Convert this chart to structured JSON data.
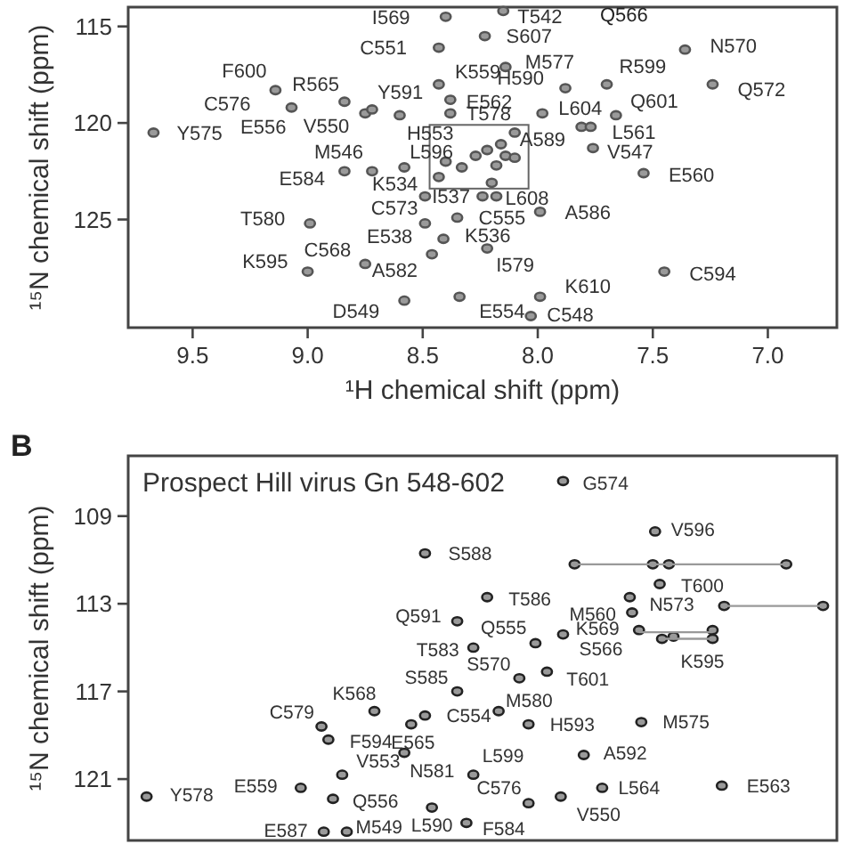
{
  "chart_data": [
    {
      "type": "scatter",
      "xlabel": "¹H chemical shift (ppm)",
      "ylabel": "¹⁵N chemical shift (ppm)",
      "xlim": [
        9.78,
        6.7
      ],
      "ylim": [
        130.6,
        114
      ],
      "xticks": [
        9.5,
        {
          "value": 9,
          "label": "9.0"
        },
        8.5,
        {
          "value": 8,
          "label": "8.0"
        },
        7.5,
        {
          "value": 7,
          "label": "7.0"
        }
      ],
      "yticks": [
        115,
        120,
        125
      ],
      "marker": "circle",
      "series": [
        {
          "color": "#555555",
          "x": [
            9.67,
            9.14,
            9.07,
            8.84,
            8.75,
            8.72,
            8.6,
            8.84,
            8.72,
            8.58,
            8.99,
            8.75,
            9.0,
            8.58,
            8.4,
            8.43,
            8.14,
            8.43,
            8.38,
            8.38,
            7.88,
            7.98,
            7.7,
            7.66,
            7.81,
            7.77,
            7.76,
            7.36,
            7.24,
            7.54,
            8.24,
            8.18,
            8.35,
            7.99,
            8.41,
            8.22,
            8.46,
            7.99,
            8.34,
            8.03,
            7.45,
            8.4,
            8.33,
            8.27,
            8.22,
            8.16,
            8.1,
            8.14,
            8.1,
            8.18,
            8.2,
            8.43,
            8.49,
            8.49,
            8.15,
            8.23
          ],
          "values": [
            120.5,
            118.3,
            119.2,
            118.9,
            119.5,
            119.3,
            119.6,
            122.5,
            122.5,
            122.3,
            125.2,
            127.3,
            127.7,
            129.2,
            114.5,
            116.1,
            117.1,
            118.0,
            118.8,
            119.5,
            118.2,
            119.5,
            118.0,
            119.6,
            120.2,
            120.2,
            121.3,
            116.2,
            118.0,
            122.6,
            123.8,
            123.8,
            124.9,
            124.6,
            126.0,
            126.5,
            126.8,
            129.0,
            129.0,
            130.0,
            127.7,
            122.0,
            122.3,
            121.7,
            121.4,
            121.1,
            120.5,
            121.7,
            121.8,
            122.2,
            123.1,
            122.8,
            125.2,
            123.8,
            114.2,
            115.5
          ]
        }
      ],
      "annotations": [
        {
          "text": "F600",
          "x": 9.14,
          "y": 118.3
        },
        {
          "text": "C576",
          "x": 9.07,
          "y": 119.2
        },
        {
          "text": "R565",
          "x": 8.84,
          "y": 118.9
        },
        {
          "text": "Y591",
          "x": 8.72,
          "y": 119.3
        },
        {
          "text": "E556",
          "x": 9.07,
          "y": 119.2
        },
        {
          "text": "V550",
          "x": 8.75,
          "y": 119.5
        },
        {
          "text": "Y575",
          "x": 9.67,
          "y": 120.5
        },
        {
          "text": "H553",
          "x": 8.6,
          "y": 119.6
        },
        {
          "text": "M546",
          "x": 8.72,
          "y": 122.5
        },
        {
          "text": "L596",
          "x": 8.58,
          "y": 122.3
        },
        {
          "text": "E584",
          "x": 8.84,
          "y": 122.5
        },
        {
          "text": "K534",
          "x": 8.49,
          "y": 123.8
        },
        {
          "text": "T580",
          "x": 8.99,
          "y": 125.2
        },
        {
          "text": "C573",
          "x": 8.49,
          "y": 125.2
        },
        {
          "text": "E538",
          "x": 8.49,
          "y": 125.2
        },
        {
          "text": "C568",
          "x": 8.75,
          "y": 127.3
        },
        {
          "text": "K595",
          "x": 9.0,
          "y": 127.7
        },
        {
          "text": "A582",
          "x": 8.46,
          "y": 126.8
        },
        {
          "text": "D549",
          "x": 8.58,
          "y": 129.2
        },
        {
          "text": "I569",
          "x": 8.4,
          "y": 114.5
        },
        {
          "text": "C551",
          "x": 8.43,
          "y": 116.1
        },
        {
          "text": "T542",
          "x": 8.15,
          "y": 114.2
        },
        "Q566",
        {
          "text": "S607",
          "x": 8.23,
          "y": 115.5
        },
        {
          "text": "M577",
          "x": 8.14,
          "y": 117.1
        },
        {
          "text": "K559",
          "x": 8.43,
          "y": 118.0
        },
        {
          "text": "E562",
          "x": 8.38,
          "y": 118.8
        },
        {
          "text": "T578",
          "x": 8.38,
          "y": 119.5
        },
        {
          "text": "H590",
          "x": 7.88,
          "y": 118.2
        },
        {
          "text": "L604",
          "x": 7.98,
          "y": 119.5
        },
        {
          "text": "R599",
          "x": 7.7,
          "y": 118.0
        },
        {
          "text": "Q601",
          "x": 7.66,
          "y": 119.6
        },
        {
          "text": "A589",
          "x": 7.81,
          "y": 120.2
        },
        {
          "text": "L561",
          "x": 7.77,
          "y": 120.2
        },
        {
          "text": "V547",
          "x": 7.76,
          "y": 121.3
        },
        {
          "text": "N570",
          "x": 7.36,
          "y": 116.2
        },
        {
          "text": "Q572",
          "x": 7.24,
          "y": 118.0
        },
        {
          "text": "E560",
          "x": 7.54,
          "y": 122.6
        },
        {
          "text": "I537",
          "x": 8.24,
          "y": 123.8
        },
        {
          "text": "L608",
          "x": 8.18,
          "y": 123.8
        },
        {
          "text": "C555",
          "x": 8.35,
          "y": 124.9
        },
        {
          "text": "A586",
          "x": 7.99,
          "y": 124.6
        },
        {
          "text": "K536",
          "x": 8.41,
          "y": 126.0
        },
        {
          "text": "I579",
          "x": 8.22,
          "y": 126.5
        },
        {
          "text": "K610",
          "x": 7.99,
          "y": 129.0
        },
        {
          "text": "E554",
          "x": 8.34,
          "y": 129.0
        },
        {
          "text": "C548",
          "x": 8.03,
          "y": 130.0
        },
        {
          "text": "C594",
          "x": 7.45,
          "y": 127.7
        }
      ]
    },
    {
      "type": "scatter",
      "title": "Prospect Hill virus Gn 548-602",
      "ylabel": "¹⁵N chemical shift (ppm)",
      "xlim": [
        9.78,
        6.7
      ],
      "ylim": [
        123.8,
        106.25
      ],
      "yticks": [
        109,
        113,
        117,
        121
      ],
      "tick_labels": "y",
      "marker": "circle",
      "series": [
        {
          "color": "#222222",
          "x": [
            9.7,
            8.71,
            8.94,
            8.91,
            8.85,
            9.03,
            8.89,
            8.93,
            8.83,
            8.35,
            8.55,
            8.58,
            7.89,
            7.49,
            8.49,
            7.84,
            7.5,
            7.43,
            6.92,
            7.47,
            8.22,
            7.19,
            6.76,
            7.6,
            7.59,
            7.56,
            7.46,
            7.41,
            7.24,
            7.24,
            8.01,
            7.89,
            8.28,
            8.08,
            7.96,
            8.35,
            8.17,
            8.49,
            8.04,
            7.55,
            8.28,
            7.8,
            7.2,
            7.72,
            8.04,
            7.9,
            8.46,
            8.31
          ],
          "values": [
            121.8,
            117.9,
            118.6,
            119.2,
            120.8,
            121.4,
            121.9,
            123.4,
            123.4,
            113.8,
            118.5,
            119.8,
            107.4,
            109.7,
            110.7,
            111.2,
            111.2,
            111.2,
            111.2,
            112.1,
            112.7,
            113.1,
            113.1,
            112.7,
            113.4,
            114.2,
            114.6,
            114.5,
            114.2,
            114.6,
            114.8,
            114.4,
            115.0,
            116.4,
            116.1,
            117.0,
            117.9,
            118.1,
            118.5,
            118.4,
            120.8,
            119.9,
            121.3,
            121.4,
            122.1,
            121.8,
            122.3,
            123.0
          ]
        },
        {
          "type": "line",
          "marker": "none",
          "color": "#999999",
          "x": [
            7.84,
            6.92
          ],
          "values": [
            111.2,
            111.2
          ]
        },
        {
          "type": "line",
          "marker": "none",
          "color": "#999999",
          "x": [
            7.19,
            6.76
          ],
          "values": [
            113.1,
            113.1
          ]
        },
        {
          "type": "line",
          "marker": "none",
          "color": "#999999",
          "x": [
            7.56,
            7.24
          ],
          "values": [
            114.3,
            114.3
          ]
        },
        {
          "type": "line",
          "marker": "none",
          "color": "#999999",
          "x": [
            7.46,
            7.24
          ],
          "values": [
            114.6,
            114.6
          ]
        }
      ],
      "annotations": [
        "B",
        {
          "text": "Y578",
          "x": 9.7,
          "y": 121.8
        },
        {
          "text": "K568",
          "x": 8.71,
          "y": 117.9
        },
        {
          "text": "C579",
          "x": 8.94,
          "y": 118.6
        },
        {
          "text": "F594",
          "x": 8.91,
          "y": 119.2
        },
        {
          "text": "V553",
          "x": 8.85,
          "y": 120.8
        },
        {
          "text": "E559",
          "x": 9.03,
          "y": 121.4
        },
        {
          "text": "Q556",
          "x": 8.89,
          "y": 121.9
        },
        {
          "text": "E587",
          "x": 8.93,
          "y": 123.4
        },
        {
          "text": "M549",
          "x": 8.83,
          "y": 123.4
        },
        {
          "text": "Q591",
          "x": 8.35,
          "y": 113.8
        },
        {
          "text": "N581",
          "x": 8.58,
          "y": 119.8
        },
        {
          "text": "G574",
          "x": 7.89,
          "y": 107.4
        },
        {
          "text": "V596",
          "x": 7.49,
          "y": 109.7
        },
        {
          "text": "S588",
          "x": 8.49,
          "y": 110.7
        },
        {
          "text": "T600",
          "x": 7.47,
          "y": 112.1
        },
        {
          "text": "T586",
          "x": 8.22,
          "y": 112.7
        },
        {
          "text": "M560",
          "x": 7.59,
          "y": 113.4
        },
        {
          "text": "N573",
          "x": 7.6,
          "y": 112.7
        },
        {
          "text": "K569",
          "x": 7.56,
          "y": 114.2
        },
        {
          "text": "K595",
          "x": 7.41,
          "y": 114.5
        },
        {
          "text": "Q555",
          "x": 8.01,
          "y": 114.8
        },
        {
          "text": "S566",
          "x": 7.89,
          "y": 114.4
        },
        {
          "text": "T583",
          "x": 8.28,
          "y": 115.0
        },
        {
          "text": "S570",
          "x": 8.08,
          "y": 116.4
        },
        {
          "text": "T601",
          "x": 7.96,
          "y": 116.1
        },
        {
          "text": "S585",
          "x": 8.35,
          "y": 117.0
        },
        {
          "text": "M580",
          "x": 8.17,
          "y": 117.9
        },
        {
          "text": "C554",
          "x": 8.49,
          "y": 118.1
        },
        {
          "text": "E565",
          "x": 8.55,
          "y": 118.5
        },
        {
          "text": "H593",
          "x": 8.04,
          "y": 118.5
        },
        {
          "text": "M575",
          "x": 7.55,
          "y": 118.4
        },
        {
          "text": "L599",
          "x": 8.28,
          "y": 120.8
        },
        {
          "text": "A592",
          "x": 7.8,
          "y": 119.9
        },
        {
          "text": "E563",
          "x": 7.2,
          "y": 121.3
        },
        {
          "text": "L564",
          "x": 7.72,
          "y": 121.4
        },
        {
          "text": "C576",
          "x": 8.04,
          "y": 122.1
        },
        {
          "text": "V550",
          "x": 7.9,
          "y": 121.8
        },
        {
          "text": "L590",
          "x": 8.46,
          "y": 122.3
        },
        {
          "text": "F584",
          "x": 8.31,
          "y": 123.0
        }
      ]
    }
  ]
}
